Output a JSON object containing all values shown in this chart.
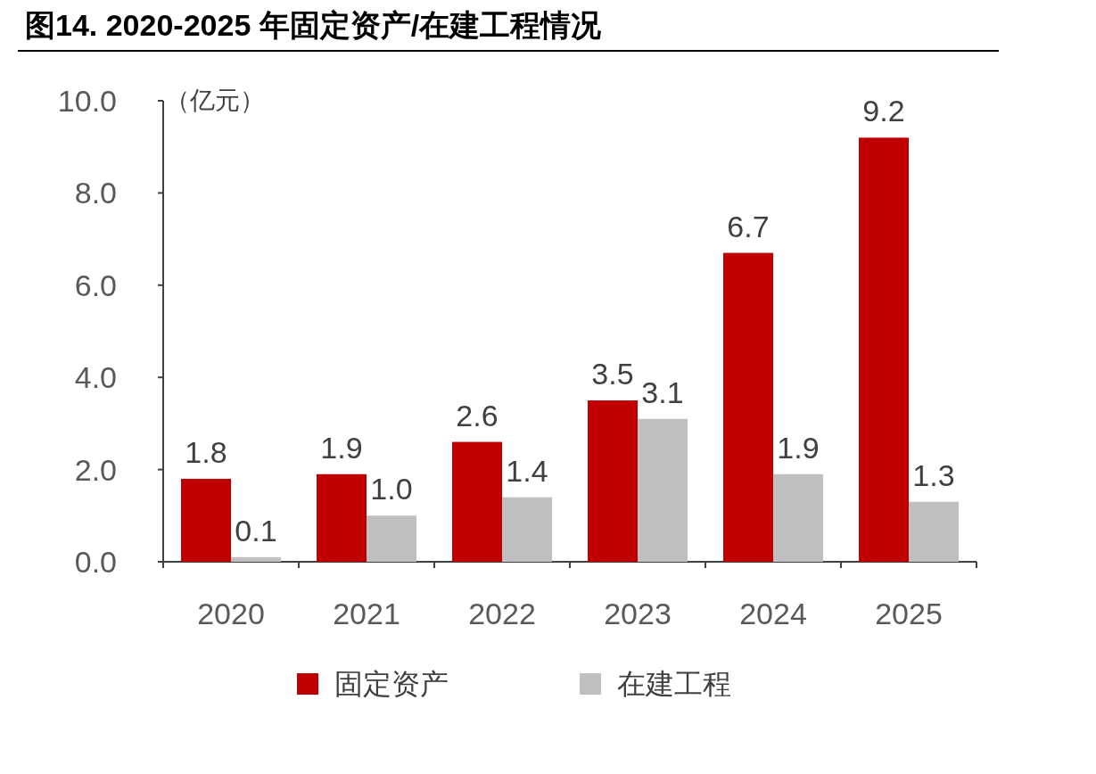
{
  "chart_data": {
    "type": "bar",
    "title": "图14. 2020-2025 年固定资产/在建工程情况",
    "ylabel": "（亿元）",
    "categories": [
      "2020",
      "2021",
      "2022",
      "2023",
      "2024",
      "2025"
    ],
    "series": [
      {
        "name": "固定资产",
        "color": "#c00000",
        "values": [
          1.8,
          1.9,
          2.6,
          3.5,
          6.7,
          9.2
        ],
        "value_labels": [
          "1.8",
          "1.9",
          "2.6",
          "3.5",
          "6.7",
          "9.2"
        ]
      },
      {
        "name": "在建工程",
        "color": "#bfbfbf",
        "values": [
          0.1,
          1.0,
          1.4,
          3.1,
          1.9,
          1.3
        ],
        "value_labels": [
          "0.1",
          "1.0",
          "1.4",
          "3.1",
          "1.9",
          "1.3"
        ]
      }
    ],
    "ylim": [
      0,
      10
    ],
    "yticks": [
      {
        "value": 0,
        "label": "0.0"
      },
      {
        "value": 2,
        "label": "2.0"
      },
      {
        "value": 4,
        "label": "4.0"
      },
      {
        "value": 6,
        "label": "6.0"
      },
      {
        "value": 8,
        "label": "8.0"
      },
      {
        "value": 10,
        "label": "10.0"
      }
    ],
    "legend": "bottom",
    "grid": false
  }
}
